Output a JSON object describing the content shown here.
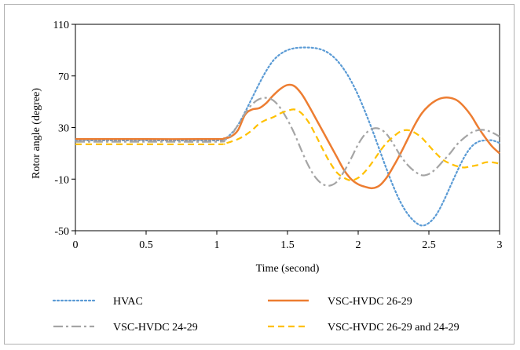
{
  "chart_data": {
    "type": "line",
    "xlabel": "Time (second)",
    "ylabel": "Rotor angle  (degree)",
    "xlim": [
      0,
      3
    ],
    "ylim": [
      -50,
      110
    ],
    "xticks": [
      "0",
      "0.5",
      "1",
      "1.5",
      "2",
      "2.5",
      "3"
    ],
    "yticks": [
      "110",
      "70",
      "30",
      "-10",
      "-50"
    ],
    "grid": false,
    "legend_position": "bottom",
    "series": [
      {
        "name": "HVAC",
        "color": "#5B9BD5",
        "dash": "dotted",
        "x": [
          0,
          0.5,
          1.0,
          1.05,
          1.1,
          1.15,
          1.2,
          1.25,
          1.3,
          1.35,
          1.4,
          1.45,
          1.5,
          1.55,
          1.6,
          1.65,
          1.7,
          1.75,
          1.8,
          1.85,
          1.9,
          1.95,
          2.0,
          2.05,
          2.1,
          2.15,
          2.2,
          2.25,
          2.3,
          2.35,
          2.4,
          2.45,
          2.5,
          2.55,
          2.6,
          2.65,
          2.7,
          2.75,
          2.8,
          2.85,
          2.9,
          2.95,
          3.0
        ],
        "y": [
          20,
          20,
          20,
          21,
          25,
          32,
          42,
          53,
          64,
          74,
          82,
          87,
          90,
          91.5,
          92,
          92,
          91.5,
          90,
          87,
          82,
          75,
          66,
          55,
          42,
          28,
          13,
          -2,
          -16,
          -28,
          -37,
          -43,
          -46,
          -44,
          -38,
          -28,
          -16,
          -4,
          7,
          15,
          19,
          20,
          20,
          18
        ]
      },
      {
        "name": "VSC-HVDC 26-29",
        "color": "#ED7D31",
        "dash": "solid",
        "x": [
          0,
          0.5,
          1.0,
          1.05,
          1.1,
          1.15,
          1.2,
          1.25,
          1.3,
          1.35,
          1.4,
          1.45,
          1.5,
          1.55,
          1.6,
          1.65,
          1.7,
          1.75,
          1.8,
          1.85,
          1.9,
          1.95,
          2.0,
          2.05,
          2.1,
          2.15,
          2.2,
          2.25,
          2.3,
          2.35,
          2.4,
          2.45,
          2.5,
          2.55,
          2.6,
          2.65,
          2.7,
          2.75,
          2.8,
          2.85,
          2.9,
          2.95,
          3.0
        ],
        "y": [
          21,
          21,
          21,
          21.5,
          23,
          28,
          40,
          44,
          45,
          49,
          55,
          60,
          63,
          62,
          56,
          47,
          37,
          27,
          17,
          7,
          -3,
          -10,
          -14,
          -16,
          -17,
          -15,
          -9,
          0,
          10,
          21,
          32,
          41,
          47,
          51,
          53,
          53,
          51,
          46,
          39,
          30,
          22,
          15,
          10
        ]
      },
      {
        "name": "VSC-HVDC 24-29",
        "color": "#A5A5A5",
        "dash": "dashdot",
        "x": [
          0,
          0.5,
          1.0,
          1.05,
          1.1,
          1.15,
          1.2,
          1.25,
          1.3,
          1.35,
          1.4,
          1.45,
          1.5,
          1.55,
          1.6,
          1.65,
          1.7,
          1.75,
          1.8,
          1.85,
          1.9,
          1.95,
          2.0,
          2.05,
          2.1,
          2.15,
          2.2,
          2.25,
          2.3,
          2.35,
          2.4,
          2.45,
          2.5,
          2.55,
          2.6,
          2.65,
          2.7,
          2.75,
          2.8,
          2.85,
          2.9,
          2.95,
          3.0
        ],
        "y": [
          19,
          19,
          19,
          20,
          24,
          32,
          41,
          48,
          52,
          53,
          51,
          45,
          36,
          25,
          12,
          0,
          -9,
          -14,
          -15,
          -12,
          -4,
          6,
          17,
          25,
          29,
          29,
          25,
          17,
          8,
          1,
          -4,
          -7,
          -6,
          -2,
          4,
          10,
          17,
          22,
          26,
          28,
          28,
          26,
          23
        ]
      },
      {
        "name": "VSC-HVDC 26-29 and 24-29",
        "color": "#FFC000",
        "dash": "dashed",
        "x": [
          0,
          0.5,
          1.0,
          1.05,
          1.1,
          1.15,
          1.2,
          1.25,
          1.3,
          1.35,
          1.4,
          1.45,
          1.5,
          1.55,
          1.6,
          1.65,
          1.7,
          1.75,
          1.8,
          1.85,
          1.9,
          1.95,
          2.0,
          2.05,
          2.1,
          2.15,
          2.2,
          2.25,
          2.3,
          2.35,
          2.4,
          2.45,
          2.5,
          2.55,
          2.6,
          2.65,
          2.7,
          2.75,
          2.8,
          2.85,
          2.9,
          2.95,
          3.0
        ],
        "y": [
          17,
          17,
          17,
          17.5,
          19,
          21,
          24,
          28,
          33,
          36,
          38,
          41,
          43,
          44,
          41,
          34,
          24,
          13,
          3,
          -5,
          -9,
          -11,
          -9,
          -4,
          3,
          11,
          18,
          23,
          27,
          28,
          26,
          22,
          16,
          10,
          5,
          2,
          0,
          -1,
          0,
          1,
          3,
          3,
          2
        ]
      }
    ]
  }
}
